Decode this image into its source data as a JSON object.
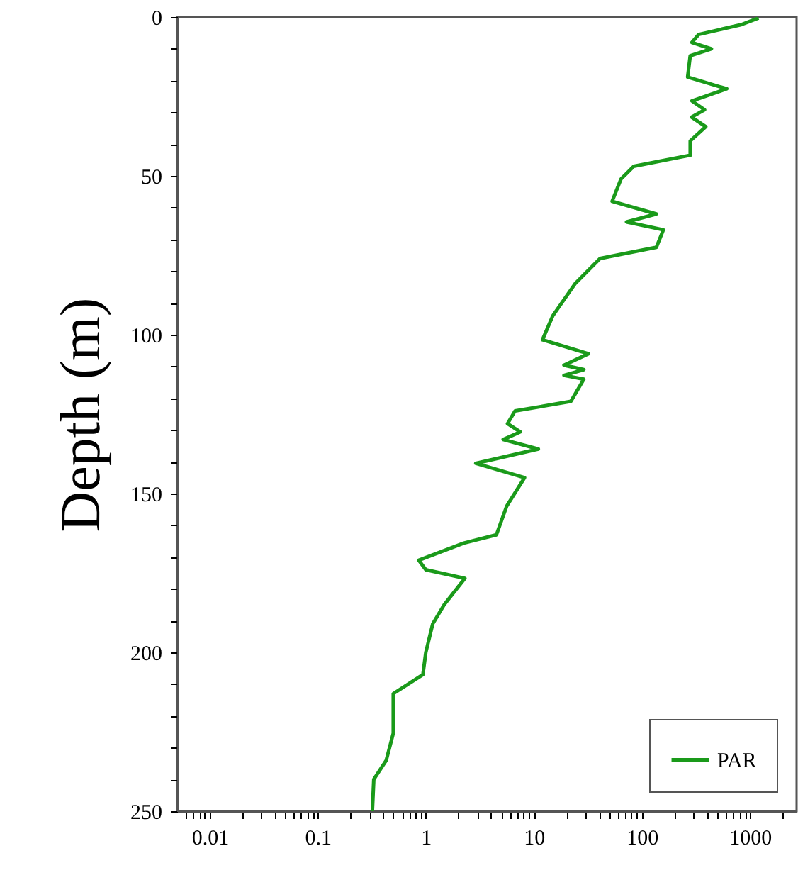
{
  "chart_data": {
    "type": "line",
    "ylabel": "Depth (m)",
    "log": "x",
    "grid": false,
    "legend": "bottom right",
    "marker": "none",
    "line_style": "solid",
    "xlim": [
      0.005,
      2700
    ],
    "ylim": [
      250,
      0
    ],
    "xticks": [
      {
        "value": 0.006,
        "label": null
      },
      {
        "value": 0.007,
        "label": null
      },
      {
        "value": 0.008,
        "label": null
      },
      {
        "value": 0.009,
        "label": null
      },
      0.01,
      {
        "value": 0.02,
        "label": null
      },
      {
        "value": 0.03,
        "label": null
      },
      {
        "value": 0.04,
        "label": null
      },
      {
        "value": 0.05,
        "label": null
      },
      {
        "value": 0.06,
        "label": null
      },
      {
        "value": 0.07,
        "label": null
      },
      {
        "value": 0.08,
        "label": null
      },
      {
        "value": 0.09,
        "label": null
      },
      0.1,
      {
        "value": 0.2,
        "label": null
      },
      {
        "value": 0.3,
        "label": null
      },
      {
        "value": 0.4,
        "label": null
      },
      {
        "value": 0.5,
        "label": null
      },
      {
        "value": 0.6,
        "label": null
      },
      {
        "value": 0.7,
        "label": null
      },
      {
        "value": 0.8,
        "label": null
      },
      {
        "value": 0.9,
        "label": null
      },
      1,
      {
        "value": 2,
        "label": null
      },
      {
        "value": 3,
        "label": null
      },
      {
        "value": 4,
        "label": null
      },
      {
        "value": 5,
        "label": null
      },
      {
        "value": 6,
        "label": null
      },
      {
        "value": 7,
        "label": null
      },
      {
        "value": 8,
        "label": null
      },
      {
        "value": 9,
        "label": null
      },
      10,
      {
        "value": 20,
        "label": null
      },
      {
        "value": 30,
        "label": null
      },
      {
        "value": 40,
        "label": null
      },
      {
        "value": 50,
        "label": null
      },
      {
        "value": 60,
        "label": null
      },
      {
        "value": 70,
        "label": null
      },
      {
        "value": 80,
        "label": null
      },
      {
        "value": 90,
        "label": null
      },
      100,
      {
        "value": 200,
        "label": null
      },
      {
        "value": 300,
        "label": null
      },
      {
        "value": 400,
        "label": null
      },
      {
        "value": 500,
        "label": null
      },
      {
        "value": 600,
        "label": null
      },
      {
        "value": 700,
        "label": null
      },
      {
        "value": 800,
        "label": null
      },
      {
        "value": 900,
        "label": null
      },
      1000,
      {
        "value": 2000,
        "label": null
      }
    ],
    "yticks": [
      0,
      {
        "value": 10,
        "label": null
      },
      {
        "value": 20,
        "label": null
      },
      {
        "value": 30,
        "label": null
      },
      {
        "value": 40,
        "label": null
      },
      50,
      {
        "value": 60,
        "label": null
      },
      {
        "value": 70,
        "label": null
      },
      {
        "value": 80,
        "label": null
      },
      {
        "value": 90,
        "label": null
      },
      100,
      {
        "value": 110,
        "label": null
      },
      {
        "value": 120,
        "label": null
      },
      {
        "value": 130,
        "label": null
      },
      {
        "value": 140,
        "label": null
      },
      150,
      {
        "value": 160,
        "label": null
      },
      {
        "value": 170,
        "label": null
      },
      {
        "value": 180,
        "label": null
      },
      {
        "value": 190,
        "label": null
      },
      200,
      {
        "value": 210,
        "label": null
      },
      {
        "value": 220,
        "label": null
      },
      {
        "value": 230,
        "label": null
      },
      {
        "value": 240,
        "label": null
      },
      250
    ],
    "series": [
      {
        "name": "PAR",
        "color": "#1a9a1a",
        "x": [
          1200,
          830,
          335,
          290,
          440,
          280,
          265,
          610,
          290,
          380,
          288,
          390,
          280,
          280,
          84,
          64,
          53,
          136,
          72,
          158,
          136,
          41,
          24,
          15,
          12,
          32,
          19,
          29,
          19,
          29,
          22,
          6.7,
          5.7,
          7.5,
          5.2,
          11,
          2.9,
          8.2,
          5.6,
          4.5,
          2.25,
          0.86,
          1.0,
          2.3,
          1.48,
          1.16,
          1.0,
          0.94,
          0.5,
          0.5,
          0.43,
          0.33,
          0.32
        ],
        "values": [
          0.3,
          2.4,
          5.5,
          8,
          10,
          12.2,
          18.9,
          22.6,
          26.4,
          29.2,
          31.5,
          34.5,
          39,
          43.5,
          47,
          51,
          58,
          62,
          64.5,
          67,
          72.5,
          76,
          84,
          94,
          101.6,
          106,
          109.6,
          111,
          112.8,
          114,
          121,
          124,
          128,
          130.6,
          133,
          136,
          140.5,
          145,
          154,
          163,
          165.6,
          171,
          174,
          176.7,
          185,
          191,
          200,
          207,
          213,
          225.5,
          234,
          240,
          250
        ]
      }
    ]
  }
}
